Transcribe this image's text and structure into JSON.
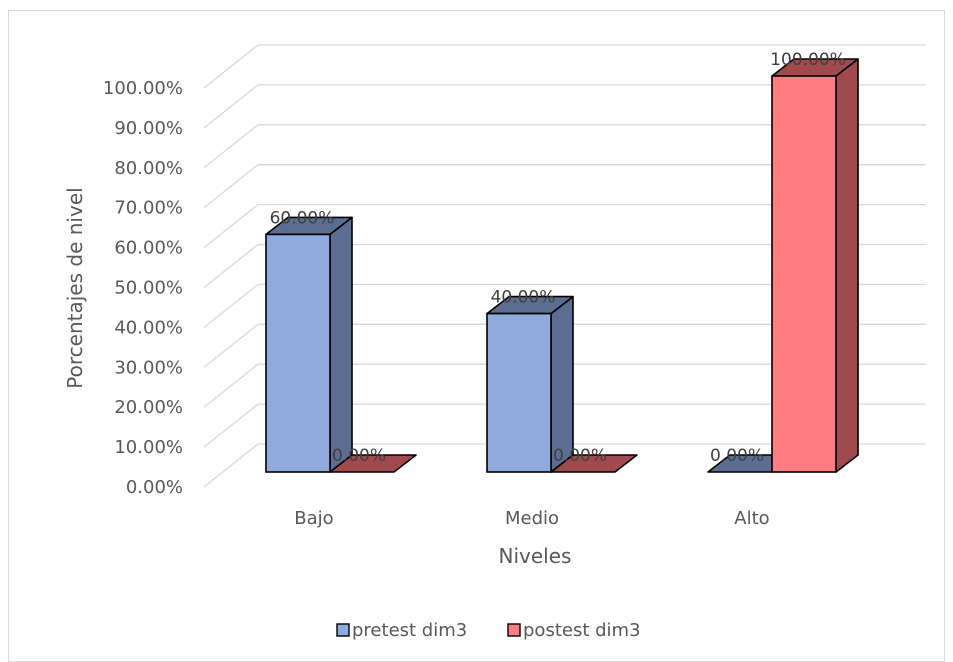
{
  "chart_data": {
    "type": "bar",
    "style": "3d-clustered-column",
    "title": "",
    "xlabel": "Niveles",
    "ylabel": "Porcentajes de nivel",
    "categories": [
      "Bajo",
      "Medio",
      "Alto"
    ],
    "series": [
      {
        "name": "pretest dim3",
        "values": [
          60,
          40,
          0
        ],
        "labels": [
          "60.00%",
          "40.00%",
          "0.00%"
        ],
        "color": "#8FAADC",
        "side_color": "#5B6E91"
      },
      {
        "name": "postest dim3",
        "values": [
          0,
          0,
          100
        ],
        "labels": [
          "0.00%",
          "0.00%",
          "100.00%"
        ],
        "color": "#FF7C80",
        "side_color": "#A04A4D"
      }
    ],
    "ylim": [
      0,
      100
    ],
    "yticks": [
      "0.00%",
      "10.00%",
      "20.00%",
      "30.00%",
      "40.00%",
      "50.00%",
      "60.00%",
      "70.00%",
      "80.00%",
      "90.00%",
      "100.00%"
    ],
    "grid": true,
    "legend_position": "bottom"
  }
}
